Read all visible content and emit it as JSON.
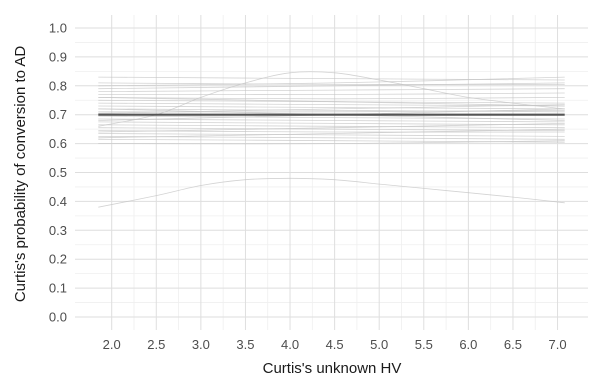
{
  "chart_data": {
    "type": "line",
    "title": "",
    "xlabel": "Curtis's unknown HV",
    "ylabel": "Curtis's probability of conversion to AD",
    "xlim": [
      1.85,
      7.08
    ],
    "ylim": [
      0.0,
      1.0
    ],
    "x_ticks": [
      "2.0",
      "2.5",
      "3.0",
      "3.5",
      "4.0",
      "4.5",
      "5.0",
      "5.5",
      "6.0",
      "6.5",
      "7.0"
    ],
    "y_ticks": [
      "0.0",
      "0.1",
      "0.2",
      "0.3",
      "0.4",
      "0.5",
      "0.6",
      "0.7",
      "0.8",
      "0.9",
      "1.0"
    ],
    "grid": true,
    "legend": "none",
    "colors": {
      "draws": "#c4c4c4",
      "mean": "#555555",
      "grid": "#dedede"
    },
    "mean_series": {
      "name": "",
      "x": [
        1.85,
        7.08
      ],
      "y": [
        0.7,
        0.7
      ]
    },
    "series": [
      {
        "x": [
          1.85,
          2.5,
          3.0,
          3.5,
          4.0,
          4.5,
          5.0,
          5.5,
          6.0,
          6.5,
          7.08
        ],
        "y": [
          0.38,
          0.42,
          0.455,
          0.475,
          0.48,
          0.475,
          0.46,
          0.445,
          0.43,
          0.415,
          0.395
        ]
      },
      {
        "x": [
          1.85,
          2.5,
          3.0,
          3.5,
          4.0,
          4.5,
          5.0,
          5.5,
          6.0,
          6.5,
          7.08
        ],
        "y": [
          0.66,
          0.7,
          0.76,
          0.81,
          0.845,
          0.845,
          0.82,
          0.79,
          0.76,
          0.74,
          0.72
        ]
      },
      {
        "x": [
          1.85,
          4.5,
          7.08
        ],
        "y": [
          0.83,
          0.825,
          0.82
        ]
      },
      {
        "x": [
          1.85,
          4.5,
          7.08
        ],
        "y": [
          0.81,
          0.805,
          0.805
        ]
      },
      {
        "x": [
          1.85,
          4.5,
          7.08
        ],
        "y": [
          0.79,
          0.8,
          0.81
        ]
      },
      {
        "x": [
          1.85,
          4.5,
          7.08
        ],
        "y": [
          0.78,
          0.785,
          0.79
        ]
      },
      {
        "x": [
          1.85,
          4.5,
          7.08
        ],
        "y": [
          0.77,
          0.77,
          0.775
        ]
      },
      {
        "x": [
          1.85,
          4.5,
          7.08
        ],
        "y": [
          0.76,
          0.755,
          0.76
        ]
      },
      {
        "x": [
          1.85,
          4.5,
          7.08
        ],
        "y": [
          0.75,
          0.745,
          0.74
        ]
      },
      {
        "x": [
          1.85,
          4.5,
          7.08
        ],
        "y": [
          0.74,
          0.735,
          0.73
        ]
      },
      {
        "x": [
          1.85,
          4.5,
          7.08
        ],
        "y": [
          0.73,
          0.725,
          0.72
        ]
      },
      {
        "x": [
          1.85,
          4.5,
          7.08
        ],
        "y": [
          0.72,
          0.715,
          0.71
        ]
      },
      {
        "x": [
          1.85,
          4.5,
          7.08
        ],
        "y": [
          0.71,
          0.71,
          0.715
        ]
      },
      {
        "x": [
          1.85,
          4.5,
          7.08
        ],
        "y": [
          0.695,
          0.69,
          0.685
        ]
      },
      {
        "x": [
          1.85,
          4.5,
          7.08
        ],
        "y": [
          0.685,
          0.68,
          0.675
        ]
      },
      {
        "x": [
          1.85,
          4.5,
          7.08
        ],
        "y": [
          0.675,
          0.67,
          0.665
        ]
      },
      {
        "x": [
          1.85,
          4.5,
          7.08
        ],
        "y": [
          0.665,
          0.66,
          0.655
        ]
      },
      {
        "x": [
          1.85,
          4.5,
          7.08
        ],
        "y": [
          0.655,
          0.65,
          0.645
        ]
      },
      {
        "x": [
          1.85,
          4.5,
          7.08
        ],
        "y": [
          0.645,
          0.64,
          0.64
        ]
      },
      {
        "x": [
          1.85,
          4.5,
          7.08
        ],
        "y": [
          0.635,
          0.63,
          0.625
        ]
      },
      {
        "x": [
          1.85,
          4.5,
          7.08
        ],
        "y": [
          0.625,
          0.62,
          0.615
        ]
      },
      {
        "x": [
          1.85,
          4.5,
          7.08
        ],
        "y": [
          0.615,
          0.61,
          0.605
        ]
      },
      {
        "x": [
          1.85,
          4.5,
          7.08
        ],
        "y": [
          0.6,
          0.6,
          0.61
        ]
      },
      {
        "x": [
          1.85,
          4.5,
          7.08
        ],
        "y": [
          0.68,
          0.7,
          0.72
        ]
      },
      {
        "x": [
          1.85,
          4.5,
          7.08
        ],
        "y": [
          0.72,
          0.7,
          0.68
        ]
      },
      {
        "x": [
          1.85,
          4.5,
          7.08
        ],
        "y": [
          0.64,
          0.655,
          0.67
        ]
      },
      {
        "x": [
          1.85,
          4.5,
          7.08
        ],
        "y": [
          0.76,
          0.745,
          0.73
        ]
      },
      {
        "x": [
          1.85,
          4.5,
          7.08
        ],
        "y": [
          0.8,
          0.81,
          0.83
        ]
      },
      {
        "x": [
          1.85,
          4.5,
          7.08
        ],
        "y": [
          0.62,
          0.635,
          0.65
        ]
      },
      {
        "x": [
          1.85,
          4.5,
          7.08
        ],
        "y": [
          0.705,
          0.72,
          0.735
        ]
      }
    ]
  }
}
